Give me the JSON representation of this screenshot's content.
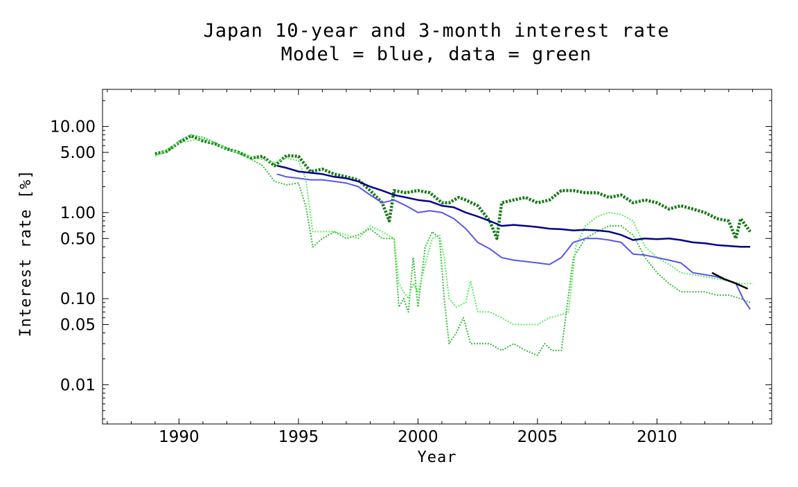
{
  "title_line1": "Japan 10-year and 3-month interest rate",
  "title_line2": "Model = blue, data = green",
  "chart_data": {
    "type": "line",
    "title": "Japan 10-year and 3-month interest rate",
    "subtitle": "Model = blue, data = green",
    "xlabel": "Year",
    "ylabel": "Interest rate [%]",
    "xlim": [
      1986.8,
      2014.8
    ],
    "ylim": [
      0.0035,
      27
    ],
    "yscale": "log",
    "grid": false,
    "x_ticks": [
      1990,
      1995,
      2000,
      2005,
      2010
    ],
    "x_tick_labels": [
      "1990",
      "1995",
      "2000",
      "2005",
      "2010"
    ],
    "y_ticks": [
      0.01,
      0.05,
      0.1,
      0.5,
      1,
      5,
      10
    ],
    "y_tick_labels": [
      "0.01",
      "0.05",
      "0.10",
      "0.50",
      "1.00",
      "5.00",
      "10.00"
    ],
    "series": [
      {
        "style": "dotted",
        "color": "#1a7a1a",
        "width": 4.5,
        "x": [
          1989.0,
          1989.5,
          1990.0,
          1990.5,
          1991.0,
          1991.5,
          1992.0,
          1992.5,
          1993.0,
          1993.5,
          1994.0,
          1994.5,
          1995.0,
          1995.5,
          1996.0,
          1996.5,
          1997.0,
          1997.5,
          1998.0,
          1998.5,
          1998.8,
          1999.0,
          1999.5,
          2000.0,
          2000.5,
          2001.0,
          2001.3,
          2001.7,
          2002.0,
          2002.5,
          2003.0,
          2003.3,
          2003.5,
          2004.0,
          2004.5,
          2005.0,
          2005.5,
          2006.0,
          2006.5,
          2007.0,
          2007.5,
          2008.0,
          2008.5,
          2009.0,
          2009.5,
          2010.0,
          2010.5,
          2011.0,
          2011.5,
          2012.0,
          2012.5,
          2013.0,
          2013.3,
          2013.5,
          2013.9
        ],
        "y": [
          4.8,
          5.2,
          6.5,
          7.8,
          6.8,
          6.3,
          5.5,
          5.0,
          4.3,
          4.5,
          3.5,
          4.6,
          4.5,
          3.0,
          3.2,
          2.8,
          2.6,
          2.4,
          1.8,
          1.3,
          0.8,
          1.8,
          1.7,
          1.8,
          1.7,
          1.3,
          1.3,
          1.5,
          1.4,
          1.2,
          0.8,
          0.5,
          1.3,
          1.4,
          1.5,
          1.3,
          1.4,
          1.8,
          1.8,
          1.7,
          1.7,
          1.5,
          1.6,
          1.3,
          1.4,
          1.3,
          1.1,
          1.2,
          1.1,
          1.0,
          0.85,
          0.8,
          0.5,
          0.85,
          0.6
        ]
      },
      {
        "style": "dotted",
        "color": "#33bb33",
        "width": 2,
        "x": [
          1989.0,
          1989.5,
          1990.0,
          1990.5,
          1991.0,
          1991.5,
          1992.0,
          1992.5,
          1993.0,
          1993.5,
          1994.0,
          1994.5,
          1995.0,
          1995.3,
          1995.6,
          1996.0,
          1996.5,
          1997.0,
          1997.5,
          1998.0,
          1998.5,
          1999.0,
          1999.2,
          1999.4,
          1999.6,
          1999.8,
          2000.0,
          2000.3,
          2000.6,
          2000.9,
          2001.1,
          2001.3,
          2001.6,
          2001.9,
          2002.2,
          2002.5,
          2003.0,
          2003.5,
          2004.0,
          2004.5,
          2005.0,
          2005.3,
          2005.6,
          2006.0,
          2006.5,
          2007.0,
          2007.5,
          2008.0,
          2008.5,
          2009.0,
          2009.5,
          2010.0,
          2010.5,
          2011.0,
          2011.5,
          2012.0,
          2012.5,
          2013.0,
          2013.5,
          2013.9
        ],
        "y": [
          4.7,
          5.0,
          6.8,
          8.0,
          7.5,
          6.5,
          5.6,
          4.9,
          4.2,
          3.5,
          2.3,
          2.1,
          2.2,
          1.2,
          0.4,
          0.5,
          0.6,
          0.5,
          0.55,
          0.65,
          0.5,
          0.5,
          0.08,
          0.1,
          0.07,
          0.3,
          0.08,
          0.4,
          0.6,
          0.5,
          0.1,
          0.03,
          0.04,
          0.06,
          0.03,
          0.03,
          0.03,
          0.025,
          0.03,
          0.025,
          0.022,
          0.03,
          0.025,
          0.025,
          0.3,
          0.5,
          0.6,
          0.7,
          0.7,
          0.55,
          0.3,
          0.2,
          0.15,
          0.12,
          0.12,
          0.12,
          0.11,
          0.11,
          0.1,
          0.09
        ]
      },
      {
        "style": "dotted",
        "color": "#55ee55",
        "width": 2,
        "x": [
          1989.0,
          1990.0,
          1991.0,
          1992.0,
          1993.0,
          1994.0,
          1994.5,
          1995.0,
          1995.3,
          1995.6,
          1996.0,
          1996.5,
          1997.0,
          1997.5,
          1998.0,
          1998.5,
          1999.0,
          1999.2,
          1999.4,
          1999.6,
          1999.8,
          2000.0,
          2000.3,
          2000.6,
          2000.9,
          2001.1,
          2001.3,
          2001.6,
          2002.0,
          2002.2,
          2002.5,
          2003.0,
          2003.5,
          2004.0,
          2004.5,
          2005.0,
          2005.5,
          2006.0,
          2006.3,
          2006.6,
          2007.0,
          2007.5,
          2008.0,
          2008.5,
          2009.0,
          2009.5,
          2010.0,
          2010.5,
          2011.0,
          2011.5,
          2012.0,
          2012.5,
          2013.0,
          2013.5,
          2014.0
        ],
        "y": [
          4.5,
          6.5,
          7.2,
          5.5,
          4.5,
          3.8,
          4.3,
          4.0,
          2.5,
          0.6,
          0.6,
          0.6,
          0.55,
          0.5,
          0.7,
          0.6,
          0.5,
          0.15,
          0.12,
          0.1,
          0.15,
          0.12,
          0.25,
          0.5,
          0.55,
          0.3,
          0.1,
          0.08,
          0.09,
          0.16,
          0.07,
          0.07,
          0.06,
          0.05,
          0.05,
          0.05,
          0.06,
          0.065,
          0.07,
          0.4,
          0.7,
          0.9,
          1.0,
          0.95,
          0.8,
          0.4,
          0.3,
          0.25,
          0.2,
          0.19,
          0.18,
          0.17,
          0.16,
          0.15,
          0.15
        ]
      },
      {
        "style": "solid",
        "color": "#00008b",
        "width": 2.5,
        "x": [
          1994.1,
          1994.5,
          1995.0,
          1995.5,
          1996.0,
          1996.5,
          1997.0,
          1997.5,
          1998.0,
          1998.5,
          1999.0,
          1999.5,
          2000.0,
          2000.5,
          2001.0,
          2001.5,
          2002.0,
          2002.5,
          2003.0,
          2003.5,
          2004.0,
          2004.5,
          2005.0,
          2005.5,
          2006.0,
          2006.5,
          2007.0,
          2007.5,
          2008.0,
          2008.5,
          2009.0,
          2009.5,
          2010.0,
          2010.5,
          2011.0,
          2011.5,
          2012.0,
          2012.5,
          2013.0,
          2013.5,
          2013.9
        ],
        "y": [
          3.5,
          3.3,
          3.0,
          2.9,
          2.8,
          2.6,
          2.5,
          2.3,
          2.0,
          1.8,
          1.6,
          1.5,
          1.4,
          1.35,
          1.2,
          1.15,
          1.0,
          0.9,
          0.8,
          0.7,
          0.72,
          0.7,
          0.68,
          0.65,
          0.64,
          0.62,
          0.63,
          0.62,
          0.6,
          0.55,
          0.48,
          0.5,
          0.49,
          0.5,
          0.48,
          0.45,
          0.44,
          0.42,
          0.41,
          0.4,
          0.4
        ]
      },
      {
        "style": "solid",
        "color": "#5555ee",
        "width": 2,
        "x": [
          1994.1,
          1994.5,
          1995.0,
          1995.5,
          1996.0,
          1996.5,
          1997.0,
          1997.5,
          1998.0,
          1998.5,
          1999.0,
          1999.5,
          2000.0,
          2000.5,
          2001.0,
          2001.5,
          2002.0,
          2002.5,
          2003.0,
          2003.5,
          2004.0,
          2004.5,
          2005.0,
          2005.5,
          2006.0,
          2006.5,
          2007.0,
          2007.5,
          2008.0,
          2008.5,
          2009.0,
          2009.5,
          2010.0,
          2010.5,
          2011.0,
          2011.5,
          2012.0,
          2012.5,
          2013.0,
          2013.3,
          2013.6,
          2013.9
        ],
        "y": [
          2.8,
          2.6,
          2.5,
          2.4,
          2.4,
          2.3,
          2.2,
          2.0,
          1.6,
          1.3,
          1.4,
          1.2,
          1.0,
          1.05,
          1.0,
          0.85,
          0.65,
          0.45,
          0.38,
          0.3,
          0.28,
          0.27,
          0.26,
          0.25,
          0.3,
          0.45,
          0.5,
          0.5,
          0.48,
          0.45,
          0.33,
          0.32,
          0.3,
          0.28,
          0.26,
          0.2,
          0.19,
          0.18,
          0.16,
          0.15,
          0.1,
          0.075
        ]
      },
      {
        "style": "solid",
        "color": "#000000",
        "width": 2.5,
        "x": [
          2012.3,
          2012.8,
          2013.3,
          2013.8
        ],
        "y": [
          0.2,
          0.17,
          0.15,
          0.13
        ]
      }
    ]
  }
}
